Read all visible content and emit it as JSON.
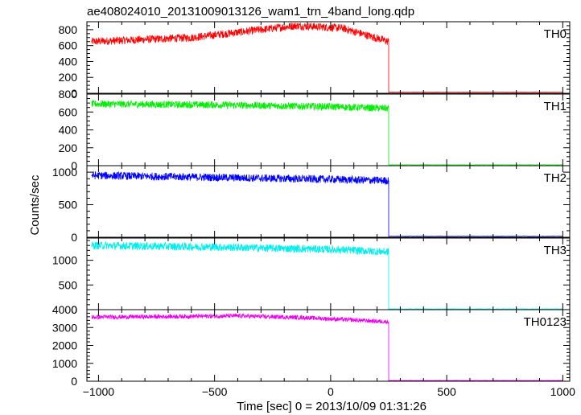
{
  "chart_data": {
    "type": "line",
    "title": "ae408024010_20131009013126_wam1_trn_4band_long.qdp",
    "xlabel": "Time [sec] 0 = 2013/10/09 01:31:26",
    "ylabel": "Counts/sec",
    "xlim": [
      -1050,
      1030
    ],
    "xticks": [
      -1000,
      -500,
      0,
      500,
      1000
    ],
    "x_tick_labels": [
      "−1000",
      "−500",
      "0",
      "500",
      "1000"
    ],
    "step_time": 250,
    "x_start": -1030,
    "x_end": 1000,
    "panels": [
      {
        "name": "TH0",
        "color": "#ff0000",
        "ylim": [
          0,
          900
        ],
        "yticks": [
          0,
          200,
          400,
          600,
          800
        ],
        "y_tick_labels": [
          "0",
          "200",
          "400",
          "600",
          "800"
        ],
        "profile": [
          [
            -1030,
            650
          ],
          [
            -600,
            700
          ],
          [
            -300,
            800
          ],
          [
            -150,
            850
          ],
          [
            50,
            820
          ],
          [
            250,
            650
          ]
        ],
        "noise": 50,
        "post_value": 15
      },
      {
        "name": "TH1",
        "color": "#00ee00",
        "ylim": [
          0,
          800
        ],
        "yticks": [
          0,
          200,
          400,
          600,
          800
        ],
        "y_tick_labels": [
          "0",
          "200",
          "400",
          "600",
          "800"
        ],
        "profile": [
          [
            -1030,
            690
          ],
          [
            -500,
            680
          ],
          [
            0,
            660
          ],
          [
            250,
            640
          ]
        ],
        "noise": 40,
        "post_value": 10
      },
      {
        "name": "TH2",
        "color": "#0000ff",
        "ylim": [
          0,
          1100
        ],
        "yticks": [
          0,
          500,
          1000
        ],
        "y_tick_labels": [
          "0",
          "500",
          "1000"
        ],
        "profile": [
          [
            -1030,
            950
          ],
          [
            -500,
            920
          ],
          [
            0,
            890
          ],
          [
            250,
            870
          ]
        ],
        "noise": 60,
        "post_value": 15
      },
      {
        "name": "TH3",
        "color": "#00eeee",
        "ylim": [
          0,
          1450
        ],
        "yticks": [
          0,
          500,
          1000
        ],
        "y_tick_labels": [
          "0",
          "500",
          "1000"
        ],
        "profile": [
          [
            -1030,
            1300
          ],
          [
            -500,
            1270
          ],
          [
            0,
            1220
          ],
          [
            250,
            1170
          ]
        ],
        "noise": 80,
        "post_value": 15
      },
      {
        "name": "TH0123",
        "color": "#ee00ee",
        "ylim": [
          0,
          4000
        ],
        "yticks": [
          0,
          1000,
          2000,
          3000,
          4000
        ],
        "y_tick_labels": [
          "0",
          "1000",
          "2000",
          "3000",
          "4000"
        ],
        "profile": [
          [
            -1030,
            3580
          ],
          [
            -400,
            3650
          ],
          [
            -100,
            3550
          ],
          [
            250,
            3320
          ]
        ],
        "noise": 120,
        "post_value": 40
      }
    ]
  }
}
